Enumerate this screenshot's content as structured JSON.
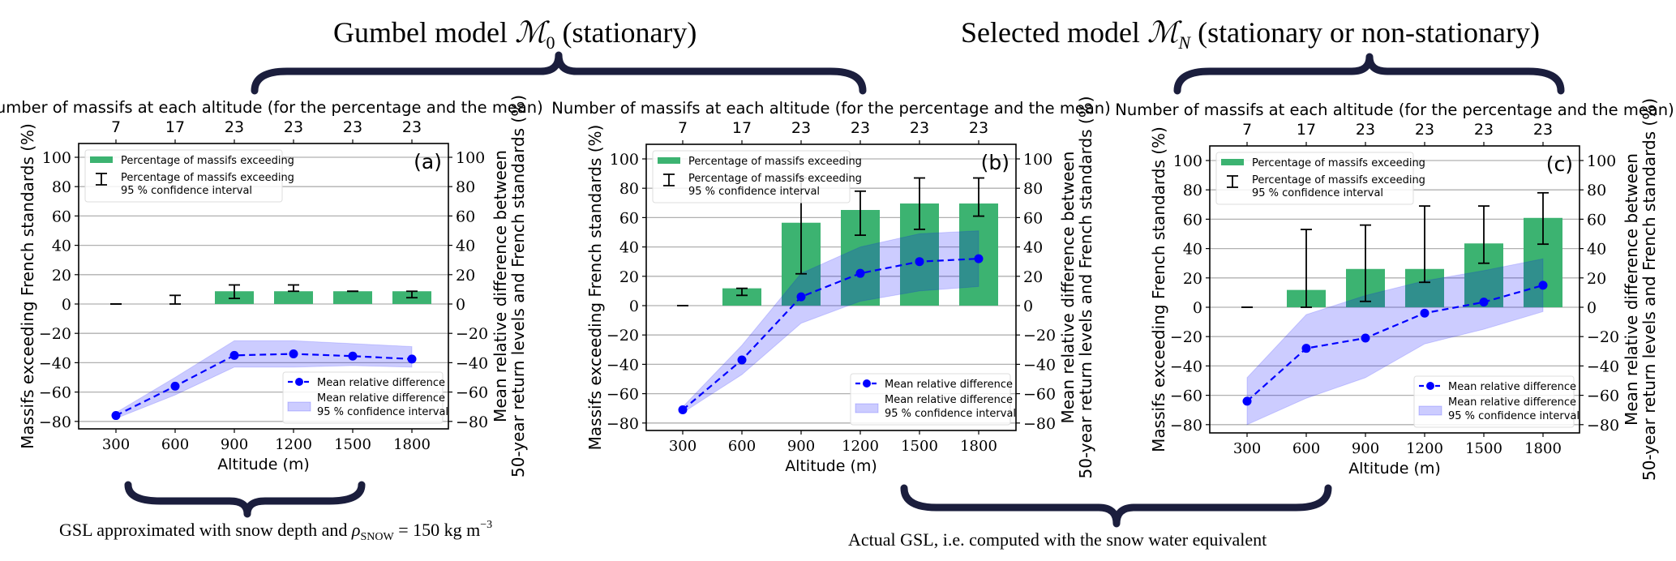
{
  "headings": {
    "left": {
      "prefix": "Gumbel model ",
      "symbol": "ℳ",
      "sub": "0",
      "suffix": " (stationary)"
    },
    "right": {
      "prefix": "Selected model ",
      "symbol": "ℳ",
      "sub": "N",
      "suffix": " (stationary or non-stationary)"
    }
  },
  "captions": {
    "left": {
      "prefix": "GSL approximated with snow depth and ",
      "symbol": "ρ",
      "sub": "SNOW",
      "mid": " = 150 kg m",
      "sup": "−3"
    },
    "right": {
      "text": "Actual GSL, i.e. computed with the snow water equivalent"
    }
  },
  "colors": {
    "bar": "#3cb371",
    "line": "#0000ff",
    "ci_fill": "#0000ff",
    "brace": "#1b1e3d",
    "grid": "#b0b0b0"
  },
  "chart_data": [
    {
      "type": "bar+line",
      "panel_label": "(a)",
      "top_axis_label": "Number of massifs at each altitude (for the percentage and the mean)",
      "top_ticks": [
        "7",
        "17",
        "23",
        "23",
        "23",
        "23"
      ],
      "x": [
        300,
        600,
        900,
        1200,
        1500,
        1800
      ],
      "x_tick_labels": [
        "300",
        "600",
        "900",
        "1200",
        "1500",
        "1800"
      ],
      "xlabel": "Altitude (m)",
      "ylabel_left": "Massifs exceeding French standards (%)",
      "ylabel_right": [
        "Mean relative difference between",
        "50-year return levels and French standards (%)"
      ],
      "ylim": [
        -86,
        108
      ],
      "yticks": [
        "100",
        "80",
        "60",
        "40",
        "20",
        "0",
        "−20",
        "−40",
        "−60",
        "−80"
      ],
      "ytick_values": [
        100,
        80,
        60,
        40,
        20,
        0,
        -20,
        -40,
        -60,
        -80
      ],
      "bars": [
        0,
        0,
        8.7,
        8.7,
        8.7,
        8.7
      ],
      "bars_ci_low": [
        0,
        0,
        3.8,
        8.7,
        8.7,
        4.3
      ],
      "bars_ci_high": [
        0,
        5.9,
        13.0,
        13.0,
        8.7,
        8.7
      ],
      "mean": [
        -76,
        -56,
        -35,
        -34,
        -35.5,
        -37.5
      ],
      "mean_ci_low": [
        -78,
        -62,
        -43,
        -43,
        -42,
        -43
      ],
      "mean_ci_high": [
        -74,
        -50,
        -25,
        -25,
        -27,
        -29
      ],
      "legend_bars": [
        "Percentage of massifs exceeding",
        "Percentage of massifs exceeding",
        "95 % confidence interval"
      ],
      "legend_line": [
        "Mean relative difference",
        "Mean relative difference",
        "95 % confidence interval"
      ]
    },
    {
      "type": "bar+line",
      "panel_label": "(b)",
      "top_axis_label": "Number of massifs at each altitude (for the percentage and the mean)",
      "top_ticks": [
        "7",
        "17",
        "23",
        "23",
        "23",
        "23"
      ],
      "x": [
        300,
        600,
        900,
        1200,
        1500,
        1800
      ],
      "x_tick_labels": [
        "300",
        "600",
        "900",
        "1200",
        "1500",
        "1800"
      ],
      "xlabel": "Altitude (m)",
      "ylabel_left": "Massifs exceeding French standards (%)",
      "ylabel_right": [
        "Mean relative difference between",
        "50-year return levels and French standards (%)"
      ],
      "ylim": [
        -86,
        108
      ],
      "yticks": [
        "100",
        "80",
        "60",
        "40",
        "20",
        "0",
        "−20",
        "−40",
        "−60",
        "−80"
      ],
      "ytick_values": [
        100,
        80,
        60,
        40,
        20,
        0,
        -20,
        -40,
        -60,
        -80
      ],
      "bars": [
        0,
        11.8,
        56.5,
        65.2,
        69.6,
        69.6
      ],
      "bars_ci_low": [
        0,
        7.0,
        21.7,
        48.0,
        52.0,
        61.0
      ],
      "bars_ci_high": [
        0,
        11.8,
        87.0,
        78.0,
        87.0,
        87.0
      ],
      "mean": [
        -71,
        -37,
        6,
        22,
        30,
        32
      ],
      "mean_ci_low": [
        -73,
        -47,
        -12,
        3,
        10,
        13
      ],
      "mean_ci_high": [
        -69,
        -27,
        22,
        40,
        49,
        51
      ],
      "legend_bars": [
        "Percentage of massifs exceeding",
        "Percentage of massifs exceeding",
        "95 % confidence interval"
      ],
      "legend_line": [
        "Mean relative difference",
        "Mean relative difference",
        "95 % confidence interval"
      ]
    },
    {
      "type": "bar+line",
      "panel_label": "(c)",
      "top_axis_label": "Number of massifs at each altitude (for the percentage and the mean)",
      "top_ticks": [
        "7",
        "17",
        "23",
        "23",
        "23",
        "23"
      ],
      "x": [
        300,
        600,
        900,
        1200,
        1500,
        1800
      ],
      "x_tick_labels": [
        "300",
        "600",
        "900",
        "1200",
        "1500",
        "1800"
      ],
      "xlabel": "Altitude (m)",
      "ylabel_left": "Massifs exceeding French standards (%)",
      "ylabel_right": [
        "Mean relative difference between",
        "50-year return levels and French standards (%)"
      ],
      "ylim": [
        -86,
        108
      ],
      "yticks": [
        "100",
        "80",
        "60",
        "40",
        "20",
        "0",
        "−20",
        "−40",
        "−60",
        "−80"
      ],
      "ytick_values": [
        100,
        80,
        60,
        40,
        20,
        0,
        -20,
        -40,
        -60,
        -80
      ],
      "bars": [
        0,
        11.8,
        26.1,
        26.1,
        43.5,
        60.9
      ],
      "bars_ci_low": [
        0,
        0,
        4.0,
        17.0,
        30.0,
        43.0
      ],
      "bars_ci_high": [
        0,
        53.0,
        56.0,
        69.0,
        69.0,
        78.0
      ],
      "mean": [
        -64,
        -28,
        -21,
        -4,
        3.5,
        15
      ],
      "mean_ci_low": [
        -80,
        -62,
        -48,
        -25,
        -15,
        -3
      ],
      "mean_ci_high": [
        -48,
        -5,
        8,
        18,
        25,
        33
      ],
      "legend_bars": [
        "Percentage of massifs exceeding",
        "Percentage of massifs exceeding",
        "95 % confidence interval"
      ],
      "legend_line": [
        "Mean relative difference",
        "Mean relative difference",
        "95 % confidence interval"
      ]
    }
  ]
}
